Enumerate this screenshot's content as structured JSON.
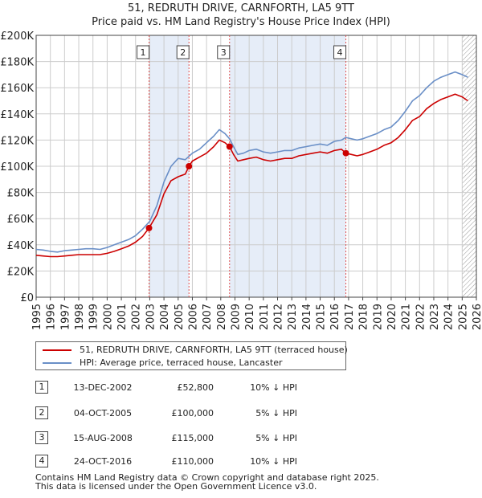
{
  "title_line1": "51, REDRUTH DRIVE, CARNFORTH, LA5 9TT",
  "title_line2": "Price paid vs. HM Land Registry's House Price Index (HPI)",
  "legend": {
    "property_label": "51, REDRUTH DRIVE, CARNFORTH, LA5 9TT (terraced house)",
    "hpi_label": "HPI: Average price, terraced house, Lancaster"
  },
  "colors": {
    "property": "#cc0000",
    "hpi": "#6a8fc7",
    "shade": "#e6edf8",
    "grid": "#cccccc",
    "axis": "#444444",
    "vline": "#e05050",
    "hatch": "#999999"
  },
  "sales": [
    {
      "num": "1",
      "date": "13-DEC-2002",
      "price": "£52,800",
      "hpi": "10% ↓ HPI"
    },
    {
      "num": "2",
      "date": "04-OCT-2005",
      "price": "£100,000",
      "hpi": "5% ↓ HPI"
    },
    {
      "num": "3",
      "date": "15-AUG-2008",
      "price": "£115,000",
      "hpi": "5% ↓ HPI"
    },
    {
      "num": "4",
      "date": "24-OCT-2016",
      "price": "£110,000",
      "hpi": "10% ↓ HPI"
    }
  ],
  "footer_line1": "Contains HM Land Registry data © Crown copyright and database right 2025.",
  "footer_line2": "This data is licensed under the Open Government Licence v3.0.",
  "chart_data": {
    "type": "line",
    "title": "51, REDRUTH DRIVE, CARNFORTH, LA5 9TT — Price paid vs. HM Land Registry's House Price Index (HPI)",
    "xlabel": "",
    "ylabel": "",
    "xlim": [
      1995,
      2026
    ],
    "ylim": [
      0,
      200000
    ],
    "grid": true,
    "legend_position": "below",
    "x_ticks": [
      1995,
      1996,
      1997,
      1998,
      1999,
      2000,
      2001,
      2002,
      2003,
      2004,
      2005,
      2006,
      2007,
      2008,
      2009,
      2010,
      2011,
      2012,
      2013,
      2014,
      2015,
      2016,
      2017,
      2018,
      2019,
      2020,
      2021,
      2022,
      2023,
      2024,
      2025,
      2026
    ],
    "y_ticks": [
      0,
      20000,
      40000,
      60000,
      80000,
      100000,
      120000,
      140000,
      160000,
      180000,
      200000
    ],
    "y_tick_labels": [
      "£0",
      "£20K",
      "£40K",
      "£60K",
      "£80K",
      "£100K",
      "£120K",
      "£140K",
      "£160K",
      "£180K",
      "£200K"
    ],
    "shaded_ranges": [
      [
        2002.95,
        2005.76
      ],
      [
        2008.62,
        2016.81
      ]
    ],
    "hatched_from": 2025.0,
    "series": [
      {
        "name": "HPI: Average price, terraced house, Lancaster",
        "x": [
          1995.0,
          1995.5,
          1996.0,
          1996.5,
          1997.0,
          1997.5,
          1998.0,
          1998.5,
          1999.0,
          1999.5,
          2000.0,
          2000.5,
          2001.0,
          2001.5,
          2002.0,
          2002.5,
          2003.0,
          2003.5,
          2004.0,
          2004.5,
          2005.0,
          2005.5,
          2006.0,
          2006.5,
          2007.0,
          2007.5,
          2007.9,
          2008.3,
          2008.62,
          2008.9,
          2009.2,
          2009.6,
          2010.0,
          2010.5,
          2011.0,
          2011.5,
          2012.0,
          2012.5,
          2013.0,
          2013.5,
          2014.0,
          2014.5,
          2015.0,
          2015.5,
          2016.0,
          2016.5,
          2016.81,
          2017.2,
          2017.6,
          2018.0,
          2018.5,
          2019.0,
          2019.5,
          2020.0,
          2020.5,
          2021.0,
          2021.5,
          2022.0,
          2022.5,
          2023.0,
          2023.5,
          2024.0,
          2024.5,
          2025.0,
          2025.4
        ],
        "values": [
          36500,
          36000,
          35000,
          34500,
          35500,
          36000,
          36500,
          37000,
          37000,
          36500,
          38000,
          40000,
          42000,
          44000,
          47000,
          52000,
          58000,
          70000,
          88000,
          100000,
          106000,
          105000,
          110000,
          113000,
          118000,
          123000,
          128000,
          125000,
          121000,
          115000,
          109000,
          110000,
          112000,
          113000,
          111000,
          110000,
          111000,
          112000,
          112000,
          114000,
          115000,
          116000,
          117000,
          116000,
          119000,
          120000,
          122000,
          121000,
          120000,
          121000,
          123000,
          125000,
          128000,
          130000,
          135000,
          142000,
          150000,
          154000,
          160000,
          165000,
          168000,
          170000,
          172000,
          170000,
          168000
        ]
      },
      {
        "name": "51, REDRUTH DRIVE, CARNFORTH, LA5 9TT (terraced house)",
        "x": [
          1995.0,
          1995.5,
          1996.0,
          1996.5,
          1997.0,
          1997.5,
          1998.0,
          1998.5,
          1999.0,
          1999.5,
          2000.0,
          2000.5,
          2001.0,
          2001.5,
          2002.0,
          2002.5,
          2002.95,
          2003.5,
          2004.0,
          2004.5,
          2005.0,
          2005.5,
          2005.76,
          2006.0,
          2006.5,
          2007.0,
          2007.5,
          2007.9,
          2008.3,
          2008.62,
          2008.9,
          2009.2,
          2009.6,
          2010.0,
          2010.5,
          2011.0,
          2011.5,
          2012.0,
          2012.5,
          2013.0,
          2013.5,
          2014.0,
          2014.5,
          2015.0,
          2015.5,
          2016.0,
          2016.5,
          2016.81,
          2017.2,
          2017.6,
          2018.0,
          2018.5,
          2019.0,
          2019.5,
          2020.0,
          2020.5,
          2021.0,
          2021.5,
          2022.0,
          2022.5,
          2023.0,
          2023.5,
          2024.0,
          2024.5,
          2025.0,
          2025.4
        ],
        "values": [
          32000,
          31500,
          31000,
          31000,
          31500,
          32000,
          32500,
          32500,
          32500,
          32500,
          33500,
          35000,
          37000,
          39000,
          42000,
          46500,
          52800,
          63000,
          79000,
          89000,
          92000,
          94000,
          100000,
          104000,
          107000,
          110000,
          115000,
          120000,
          118000,
          115000,
          109000,
          104000,
          105000,
          106000,
          107000,
          105000,
          104000,
          105000,
          106000,
          106000,
          108000,
          109000,
          110000,
          111000,
          110000,
          112000,
          113000,
          110000,
          109000,
          108000,
          109000,
          111000,
          113000,
          116000,
          118000,
          122000,
          128000,
          135000,
          138000,
          144000,
          148000,
          151000,
          153000,
          155000,
          153000,
          150000
        ]
      }
    ],
    "sale_points": [
      {
        "label": "1",
        "x": 2002.95,
        "value": 52800
      },
      {
        "label": "2",
        "x": 2005.76,
        "value": 100000
      },
      {
        "label": "3",
        "x": 2008.62,
        "value": 115000
      },
      {
        "label": "4",
        "x": 2016.81,
        "value": 110000
      }
    ]
  }
}
